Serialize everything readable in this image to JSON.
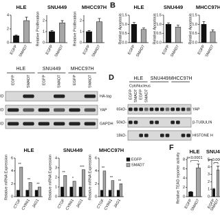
{
  "panel_labels": [
    "B",
    "D",
    "F"
  ],
  "chart_data": [
    {
      "type": "bar",
      "title": "HLE",
      "categories": [
        "EGFP",
        "SMAD7"
      ],
      "values": [
        1,
        3.2
      ],
      "errors": [
        0.1,
        0.5
      ],
      "colors": [
        "#111111",
        "#a6a6a6"
      ],
      "ylim": [
        0,
        4
      ],
      "yticks": [
        0,
        2,
        4
      ]
    },
    {
      "type": "bar",
      "title": "SNU449",
      "y_label": "Relative Proliferation",
      "categories": [
        "EGFP",
        "SMAD7"
      ],
      "values": [
        1,
        1.8
      ],
      "errors": [
        0.1,
        0.2
      ],
      "colors": [
        "#111111",
        "#a6a6a6"
      ],
      "ylim": [
        0,
        2.5
      ],
      "yticks": [
        0,
        1,
        2
      ]
    },
    {
      "type": "bar",
      "title": "MHCC97H",
      "y_label": "Relative Proliferation",
      "categories": [
        "EGFP",
        "SMAD7"
      ],
      "values": [
        1,
        1.9
      ],
      "errors": [
        0.1,
        0.3
      ],
      "colors": [
        "#111111",
        "#a6a6a6"
      ],
      "ylim": [
        0,
        2.5
      ],
      "yticks": [
        0,
        1,
        2
      ]
    },
    {
      "type": "bar",
      "title": "HLE",
      "y_label": "Relative Apoptosis",
      "categories": [
        "EGFP",
        "SMAD7"
      ],
      "values": [
        1,
        0.72
      ],
      "errors": [
        0.1,
        0.08
      ],
      "colors": [
        "#111111",
        "#a6a6a6"
      ],
      "ylim": [
        0,
        1.5
      ],
      "yticks": [
        {
          "value": 0,
          "label": "0.0"
        },
        0.5,
        {
          "value": 1,
          "label": "1.0"
        },
        1.5
      ]
    },
    {
      "type": "bar",
      "title": "SNU449",
      "y_label": "Relative Apoptosis",
      "categories": [
        "EGFP",
        "SMAD7"
      ],
      "values": [
        1,
        0.85
      ],
      "errors": [
        0.08,
        0.1
      ],
      "colors": [
        "#111111",
        "#a6a6a6"
      ],
      "ylim": [
        0,
        1.5
      ],
      "yticks": [
        {
          "value": 0,
          "label": "0.0"
        },
        0.5,
        {
          "value": 1,
          "label": "1.0"
        },
        1.5
      ]
    },
    {
      "type": "bar",
      "title": "MHCC97H",
      "y_label": "Relative Apoptosis",
      "categories": [
        "EGFP",
        "SMAD7"
      ],
      "values": [
        1,
        0.6
      ],
      "errors": [
        0.15,
        0.1
      ],
      "colors": [
        "#111111",
        "#a6a6a6"
      ],
      "ylim": [
        0,
        1.5
      ],
      "yticks": [
        {
          "value": 0,
          "label": "0.0"
        },
        0.5,
        {
          "value": 1,
          "label": "1.0"
        },
        1.5
      ]
    },
    {
      "type": "grouped_bar",
      "title": "HLE",
      "y_label": "Relative mRNA Expression",
      "categories": [
        "CTGF",
        "CYR61",
        "JAG1"
      ],
      "series": [
        {
          "name": "EGFP",
          "color": "#111111",
          "values": [
            1,
            1,
            1
          ]
        },
        {
          "name": "SMAD7",
          "color": "#a6a6a6",
          "values": [
            4.6,
            2.2,
            1.5
          ]
        }
      ],
      "annotations": [
        "**",
        "**",
        "**"
      ],
      "ylim": [
        0,
        6
      ],
      "yticks": [
        0,
        2,
        4,
        6
      ]
    },
    {
      "type": "grouped_bar",
      "title": "SNU449",
      "y_label": "Relative mRNA Expression",
      "categories": [
        "CTGF",
        "CYR61",
        "JAG1"
      ],
      "series": [
        {
          "name": "EGFP",
          "color": "#111111",
          "values": [
            1,
            1,
            1
          ]
        },
        {
          "name": "SMAD7",
          "color": "#a6a6a6",
          "values": [
            2.2,
            1.6,
            2.8
          ]
        }
      ],
      "annotations": [
        "**",
        "*",
        "***"
      ],
      "ylim": [
        0,
        4
      ],
      "yticks": [
        0,
        1,
        2,
        3,
        4
      ]
    },
    {
      "type": "grouped_bar",
      "title": "MHCC97H",
      "y_label": "Relative mRNA Expression",
      "categories": [
        "CTGF",
        "CYR61",
        "JAG1"
      ],
      "series": [
        {
          "name": "EGFP",
          "color": "#111111",
          "values": [
            1,
            1,
            1
          ]
        },
        {
          "name": "SMAD7",
          "color": "#a6a6a6",
          "values": [
            4,
            2.5,
            2
          ]
        }
      ],
      "annotations": [
        "**",
        "**",
        "**"
      ],
      "ylim": [
        0,
        6
      ],
      "yticks": [
        0,
        2,
        4,
        6
      ],
      "legend": true
    },
    {
      "type": "bar",
      "title": "HLE",
      "y_label": "Relative TEAD reporter activity",
      "categories": [
        "EGFP",
        "SMAD7"
      ],
      "values": [
        1,
        6.2
      ],
      "errors": [
        0.1,
        0.8
      ],
      "annotation": "p<0.0001",
      "colors": [
        "#111111",
        "#a6a6a6"
      ],
      "ylim": [
        0,
        8
      ],
      "yticks": [
        0,
        2,
        4,
        6,
        8
      ]
    },
    {
      "type": "bar",
      "title": "SNU449",
      "categories": [
        "EGFP",
        "SMAD7"
      ],
      "values": [
        1,
        3.6
      ],
      "errors": [
        0.1,
        0.5
      ],
      "annotation": "p<0.0001",
      "colors": [
        "#111111",
        "#a6a6a6"
      ],
      "ylim": [
        0,
        5
      ],
      "yticks": [
        0,
        1,
        2,
        3,
        4,
        5
      ]
    }
  ],
  "blots": {
    "C": {
      "groups": [
        {
          "name": "HLE",
          "lanes": [
            "EGFP",
            "SMAD7"
          ]
        },
        {
          "name": "SNU449",
          "lanes": [
            "EGFP",
            "SMAD7"
          ]
        },
        {
          "name": "MHCC97H",
          "lanes": [
            "EGFP",
            "SMAD7"
          ]
        }
      ],
      "left_labels": [
        "ID",
        "ID",
        "ID"
      ],
      "rows": [
        "HA-tag",
        "YAP",
        "GAPDH"
      ]
    },
    "D": {
      "groups": [
        {
          "name": "HLE",
          "fractions": [
            "Cyto",
            "Nucleus"
          ]
        },
        {
          "name": "SNU449"
        },
        {
          "name": "MHCC97H"
        }
      ],
      "lanes": [
        "EGFP",
        "SMAD7",
        "EGFP",
        "SMAD7"
      ],
      "markers": [
        "65kD-",
        "50kD-",
        "18kD-"
      ],
      "rows": [
        "YAP",
        "β-TUBULIN",
        "HISTONE H"
      ]
    }
  }
}
